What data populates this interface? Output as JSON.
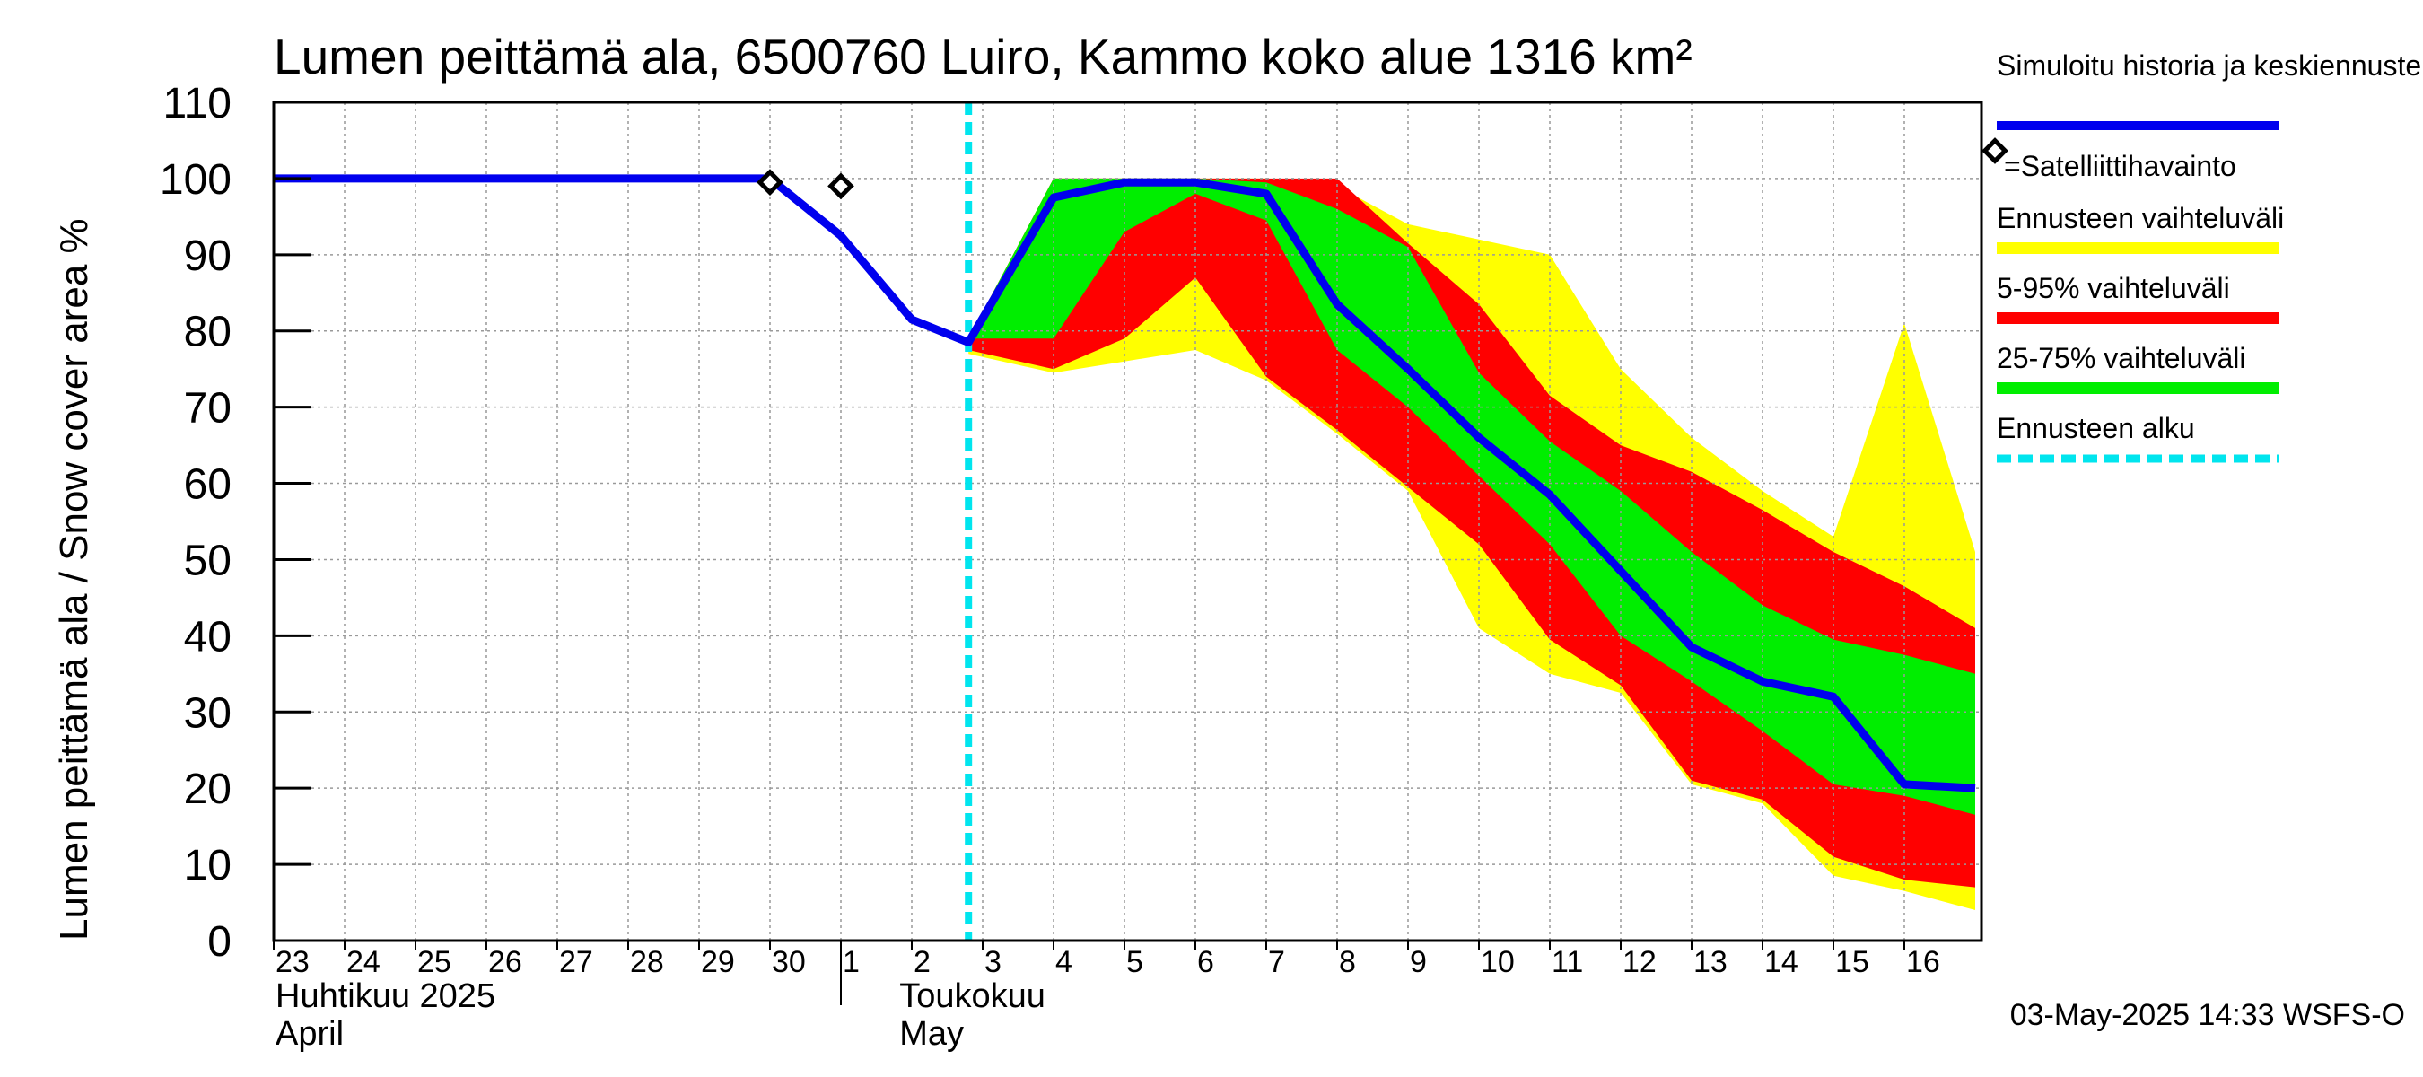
{
  "chart_data": {
    "type": "area",
    "title": "Lumen peittämä ala, 6500760 Luiro, Kammo koko alue 1316 km²",
    "ylabel": "Lumen peittämä ala / Snow cover area    %",
    "ylim": [
      0,
      110
    ],
    "yticks": [
      0,
      10,
      20,
      30,
      40,
      50,
      60,
      70,
      80,
      90,
      100,
      110
    ],
    "x_range": [
      -10,
      14
    ],
    "day_labels": [
      {
        "x": -10,
        "label": "23"
      },
      {
        "x": -9,
        "label": "24"
      },
      {
        "x": -8,
        "label": "25"
      },
      {
        "x": -7,
        "label": "26"
      },
      {
        "x": -6,
        "label": "27"
      },
      {
        "x": -5,
        "label": "28"
      },
      {
        "x": -4,
        "label": "29"
      },
      {
        "x": -3,
        "label": "30"
      },
      {
        "x": -2,
        "label": "1"
      },
      {
        "x": -1,
        "label": "2"
      },
      {
        "x": 0,
        "label": "3"
      },
      {
        "x": 1,
        "label": "4"
      },
      {
        "x": 2,
        "label": "5"
      },
      {
        "x": 3,
        "label": "6"
      },
      {
        "x": 4,
        "label": "7"
      },
      {
        "x": 5,
        "label": "8"
      },
      {
        "x": 6,
        "label": "9"
      },
      {
        "x": 7,
        "label": "10"
      },
      {
        "x": 8,
        "label": "11"
      },
      {
        "x": 9,
        "label": "12"
      },
      {
        "x": 10,
        "label": "13"
      },
      {
        "x": 11,
        "label": "14"
      },
      {
        "x": 12,
        "label": "15"
      },
      {
        "x": 13,
        "label": "16"
      }
    ],
    "month_labels": [
      {
        "x": -10,
        "line1": "Huhtikuu  2025",
        "line2": "April"
      },
      {
        "x": -1.2,
        "line1": "Toukokuu",
        "line2": "May"
      }
    ],
    "month_boundary_x": -2,
    "forecast_start_x": -0.2,
    "history": {
      "name": "Simuloitu historia ja keskiennuste",
      "color": "#0000ee",
      "x": [
        -10,
        -3,
        -2,
        -1,
        -0.2,
        1,
        2,
        3,
        4,
        5,
        6,
        7,
        8,
        9,
        10,
        11,
        12,
        13,
        14
      ],
      "y": [
        100,
        100,
        92.5,
        81.5,
        78.5,
        97.5,
        99.5,
        99.5,
        98,
        83.5,
        75,
        66,
        58.5,
        48.5,
        38.5,
        34,
        32,
        20.5,
        20
      ]
    },
    "bands": [
      {
        "name": "Ennusteen vaihteluväli",
        "color": "#ffff00",
        "x": [
          -0.2,
          1,
          2,
          3,
          4,
          5,
          6,
          7,
          8,
          9,
          10,
          11,
          12,
          13,
          14
        ],
        "upper": [
          79,
          100,
          100,
          100,
          100,
          99,
          94,
          92,
          90,
          75,
          66,
          59,
          53,
          81,
          51
        ],
        "lower": [
          77,
          74.5,
          76,
          77.5,
          73.5,
          66.5,
          59,
          41,
          35,
          32.5,
          20.5,
          18,
          8.5,
          6.5,
          4
        ]
      },
      {
        "name": "5-95% vaihteluväli",
        "color": "#ff0000",
        "x": [
          -0.2,
          1,
          2,
          3,
          4,
          5,
          6,
          7,
          8,
          9,
          10,
          11,
          12,
          13,
          14
        ],
        "upper": [
          79,
          100,
          100,
          100,
          100,
          100,
          91.5,
          83.5,
          71.5,
          65,
          61.5,
          56.5,
          51,
          46.5,
          41
        ],
        "lower": [
          77.5,
          75,
          79,
          87,
          74,
          67,
          59.5,
          52,
          39.5,
          33.5,
          21,
          18.5,
          11,
          8,
          7
        ]
      },
      {
        "name": "25-75% vaihteluväli",
        "color": "#00ee00",
        "x": [
          -0.2,
          1,
          2,
          3,
          4,
          5,
          6,
          7,
          8,
          9,
          10,
          11,
          12,
          13,
          14
        ],
        "upper": [
          79,
          100,
          100,
          100,
          99.5,
          96,
          91,
          74.5,
          65.5,
          59,
          51,
          44,
          39.5,
          37.5,
          35
        ],
        "lower": [
          79,
          79,
          93,
          98,
          94.5,
          77.5,
          70,
          61,
          52,
          40,
          34,
          27.5,
          20.5,
          19,
          16.5
        ]
      }
    ],
    "satellite_observations": {
      "name": "=Satelliittihavainto",
      "x": [
        -3,
        -2
      ],
      "y": [
        99.5,
        99
      ]
    },
    "forecast_start": {
      "name": "Ennusteen alku",
      "color": "#00e5ee"
    },
    "legend_position": "right",
    "timestamp": "03-May-2025 14:33 WSFS-O"
  }
}
